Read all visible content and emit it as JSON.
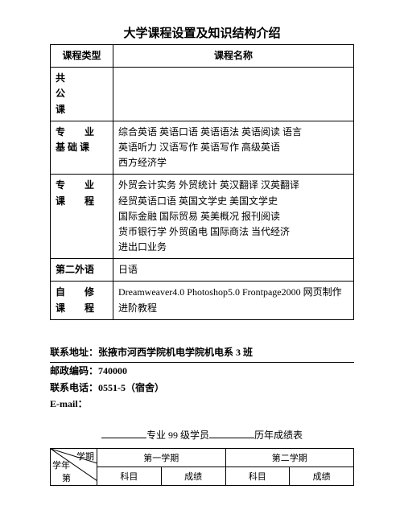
{
  "title": "大学课程设置及知识结构介绍",
  "table": {
    "header_left": "课程类型",
    "header_right": "课程名称",
    "rows": [
      {
        "left_lines": [
          "共",
          "公",
          "课"
        ],
        "left_spaced": false,
        "right": ""
      },
      {
        "left_lines": [
          "专　　业",
          "基 础 课"
        ],
        "left_spaced": false,
        "right": "综合英语 英语口语 英语语法 英语阅读 语言\n英语听力 汉语写作 英语写作 高级英语\n西方经济学"
      },
      {
        "left_lines": [
          "专　　业",
          "课　　程"
        ],
        "left_spaced": false,
        "right": "外贸会计实务 外贸统计 英汉翻译 汉英翻译\n经贸英语口语 英国文学史 美国文学史\n国际金融 国际贸易 英美概况 报刊阅读\n货币银行学 外贸函电 国际商法 当代经济\n进出口业务\n "
      },
      {
        "left_lines": [
          "第二外语"
        ],
        "left_spaced": false,
        "right": "日语"
      },
      {
        "left_lines": [
          "自　　修",
          "课　　程"
        ],
        "left_spaced": false,
        "right": "Dreamweaver4.0 Photoshop5.0 Frontpage2000 网页制作进阶教程\n "
      }
    ]
  },
  "contact": {
    "addr_label": "联系地址：",
    "addr_value": "张掖市河西学院机电学院机电系 3 班",
    "zip_label": "邮政编码：",
    "zip_value": "740000",
    "tel_label": "联系电话：",
    "tel_value": "0551-5（宿舍）",
    "email_label": "E-mail："
  },
  "section2": {
    "mid": "专业 99 级学员",
    "tail": "历年成绩表"
  },
  "grades": {
    "diag_top": "学期",
    "diag_mid": "学年",
    "diag_bot": "第",
    "sem1": "第一学期",
    "sem2": "第二学期",
    "subj": "科目",
    "score": "成绩"
  }
}
